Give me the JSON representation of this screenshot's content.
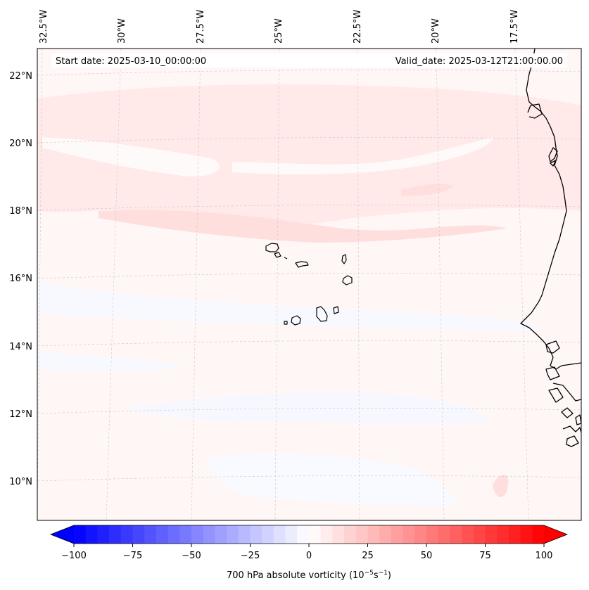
{
  "map": {
    "start_label": "Start date: 2025-03-10_00:00:00",
    "valid_label": "Valid_date: 2025-03-12T21:00:00.00",
    "lon_labels": [
      "32.5°W",
      "30°W",
      "27.5°W",
      "25°W",
      "22.5°W",
      "20°W",
      "17.5°W"
    ],
    "lat_labels": [
      "22°N",
      "20°N",
      "18°N",
      "16°N",
      "14°N",
      "12°N",
      "10°N"
    ],
    "gridlines": true
  },
  "colorbar": {
    "label_prefix": "700 hPa absolute vorticity (10",
    "label_exp1": "−5",
    "label_mid": "s",
    "label_exp2": "−1",
    "label_suffix": ")",
    "range": [
      -100,
      100
    ],
    "ticks": [
      "−100",
      "−75",
      "−50",
      "−25",
      "0",
      "25",
      "50",
      "75",
      "100"
    ],
    "extend": "both",
    "colormap": "bwr",
    "colors": {
      "low": "#0000ff",
      "mid": "#ffffff",
      "high": "#ff0000"
    }
  }
}
